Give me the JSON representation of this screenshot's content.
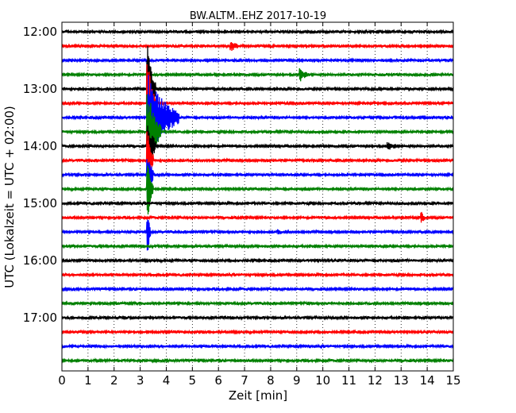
{
  "chart_data": {
    "type": "line",
    "title": "BW.ALTM..EHZ 2017-10-19",
    "xlabel": "Zeit  [min]",
    "ylabel": "UTC (Lokalzeit = UTC + 02:00)",
    "xlim": [
      0,
      15
    ],
    "xticks": [
      "0",
      "1",
      "2",
      "3",
      "4",
      "5",
      "6",
      "7",
      "8",
      "9",
      "10",
      "11",
      "12",
      "13",
      "14",
      "15"
    ],
    "ytick_labels": [
      "12:00",
      "13:00",
      "14:00",
      "15:00",
      "16:00",
      "17:00"
    ],
    "grid": "vertical dotted",
    "trace_start_hour": 12.0,
    "trace_interval_hours": 0.25,
    "trace_count": 24,
    "trace_colors": [
      "#000000",
      "#ff0000",
      "#0000ff",
      "#008000"
    ],
    "events": [
      {
        "trace": 1,
        "minute": 6.5,
        "amplitude": 0.6,
        "duration": 0.25
      },
      {
        "trace": 3,
        "minute": 9.15,
        "amplitude": 0.8,
        "duration": 0.3
      },
      {
        "trace": 4,
        "minute": 3.3,
        "amplitude": 6.0,
        "duration": 0.3
      },
      {
        "trace": 5,
        "minute": 3.3,
        "amplitude": 6.0,
        "duration": 0.3
      },
      {
        "trace": 6,
        "minute": 3.3,
        "amplitude": 6.0,
        "duration": 1.2
      },
      {
        "trace": 7,
        "minute": 3.3,
        "amplitude": 6.0,
        "duration": 0.5
      },
      {
        "trace": 8,
        "minute": 3.3,
        "amplitude": 4.0,
        "duration": 0.3
      },
      {
        "trace": 8,
        "minute": 12.5,
        "amplitude": 0.4,
        "duration": 0.5
      },
      {
        "trace": 9,
        "minute": 3.3,
        "amplitude": 4.0,
        "duration": 0.2
      },
      {
        "trace": 10,
        "minute": 3.3,
        "amplitude": 4.0,
        "duration": 0.2
      },
      {
        "trace": 11,
        "minute": 3.3,
        "amplitude": 4.0,
        "duration": 0.2
      },
      {
        "trace": 13,
        "minute": 13.8,
        "amplitude": 0.7,
        "duration": 0.1
      },
      {
        "trace": 14,
        "minute": 3.3,
        "amplitude": 3.0,
        "duration": 0.1
      },
      {
        "trace": 14,
        "minute": 8.3,
        "amplitude": 0.3,
        "duration": 0.1
      }
    ]
  }
}
